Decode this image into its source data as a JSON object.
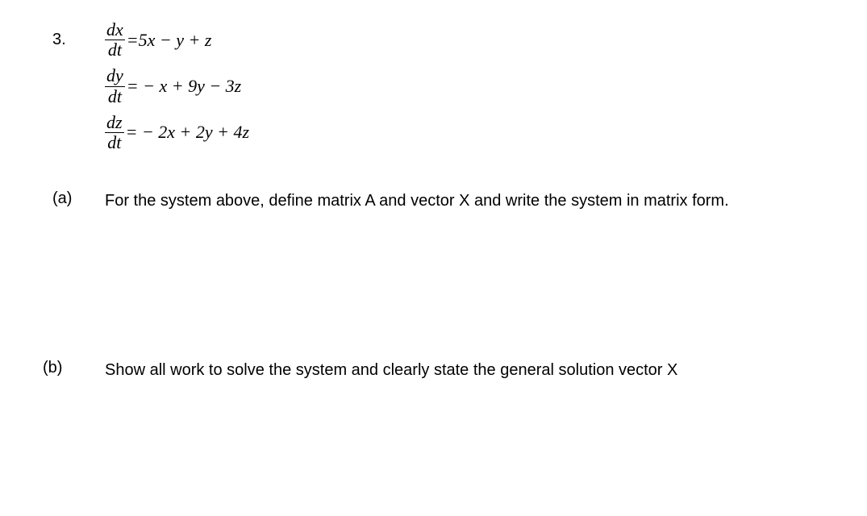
{
  "problem_number": "3.",
  "equations": {
    "eq1": {
      "lhs_top": "dx",
      "lhs_bot": "dt",
      "rhs": "=5x − y + z"
    },
    "eq2": {
      "lhs_top": "dy",
      "lhs_bot": "dt",
      "rhs": "= − x + 9y − 3z"
    },
    "eq3": {
      "lhs_top": "dz",
      "lhs_bot": "dt",
      "rhs": "= − 2x + 2y + 4z"
    }
  },
  "part_a": {
    "label": "(a)",
    "text": "For the system above, define matrix A and vector X and write the system in matrix form."
  },
  "part_b": {
    "label": "(b)",
    "text": "Show all work to solve the system and clearly state the general solution vector X"
  },
  "colors": {
    "text": "#000000",
    "background": "#ffffff"
  },
  "font_sizes": {
    "body": 20,
    "math": 22
  }
}
